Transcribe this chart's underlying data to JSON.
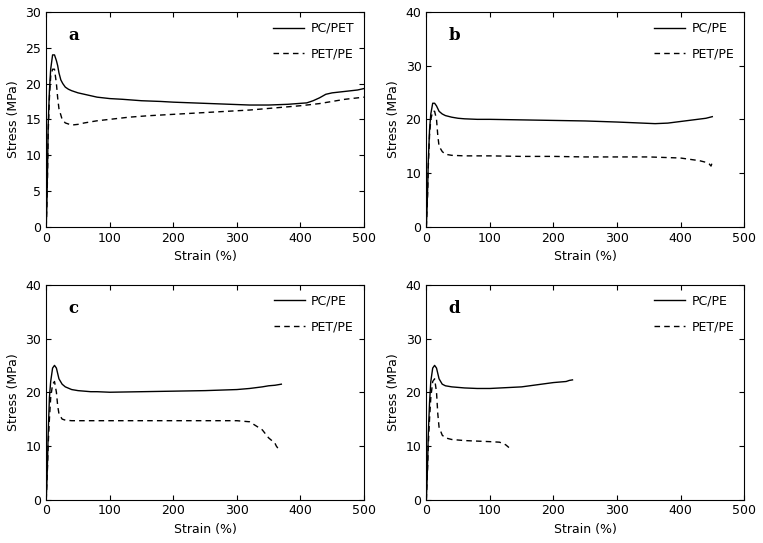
{
  "panels": [
    {
      "label": "a",
      "legend1": "PC/PET",
      "legend2": "PET/PE",
      "ylim": [
        0,
        30
      ],
      "yticks": [
        0,
        5,
        10,
        15,
        20,
        25,
        30
      ],
      "xlim": [
        0,
        500
      ],
      "xticks": [
        0,
        100,
        200,
        300,
        400,
        500
      ],
      "solid": {
        "x": [
          0,
          1,
          2,
          3,
          5,
          7,
          10,
          13,
          16,
          18,
          20,
          23,
          26,
          30,
          35,
          40,
          50,
          60,
          70,
          80,
          100,
          120,
          150,
          180,
          200,
          230,
          260,
          290,
          320,
          350,
          380,
          410,
          420,
          430,
          440,
          450,
          460,
          470,
          480,
          490,
          500
        ],
        "y": [
          0,
          3,
          8,
          14,
          19,
          22,
          24,
          24,
          23.2,
          22.5,
          21.5,
          20.5,
          20,
          19.5,
          19.2,
          19.0,
          18.7,
          18.5,
          18.3,
          18.1,
          17.9,
          17.8,
          17.6,
          17.5,
          17.4,
          17.3,
          17.2,
          17.1,
          17.0,
          17.0,
          17.1,
          17.3,
          17.6,
          18.0,
          18.5,
          18.7,
          18.8,
          18.9,
          19.0,
          19.1,
          19.3
        ]
      },
      "dashed": {
        "x": [
          0,
          1,
          2,
          3,
          5,
          7,
          10,
          13,
          16,
          18,
          20,
          25,
          30,
          40,
          50,
          60,
          80,
          100,
          130,
          160,
          200,
          240,
          280,
          320,
          360,
          400,
          430,
          450,
          470,
          490,
          500
        ],
        "y": [
          0,
          3,
          7,
          13,
          18,
          21,
          22,
          22,
          20,
          18,
          16.5,
          15.0,
          14.5,
          14.2,
          14.3,
          14.5,
          14.8,
          15.0,
          15.3,
          15.5,
          15.7,
          15.9,
          16.1,
          16.3,
          16.6,
          16.9,
          17.2,
          17.5,
          17.8,
          18.0,
          18.1
        ]
      }
    },
    {
      "label": "b",
      "legend1": "PC/PE",
      "legend2": "PET/PE",
      "ylim": [
        0,
        40
      ],
      "yticks": [
        0,
        10,
        20,
        30,
        40
      ],
      "xlim": [
        0,
        500
      ],
      "xticks": [
        0,
        100,
        200,
        300,
        400,
        500
      ],
      "solid": {
        "x": [
          0,
          1,
          2,
          3,
          5,
          7,
          10,
          13,
          16,
          18,
          20,
          25,
          30,
          40,
          50,
          60,
          80,
          100,
          150,
          200,
          250,
          300,
          320,
          340,
          360,
          380,
          400,
          420,
          440,
          450
        ],
        "y": [
          0,
          3,
          7,
          12,
          18,
          21,
          23,
          23,
          22.5,
          22,
          21.5,
          21.0,
          20.7,
          20.4,
          20.2,
          20.1,
          20.0,
          20.0,
          19.9,
          19.8,
          19.7,
          19.5,
          19.4,
          19.3,
          19.2,
          19.3,
          19.6,
          19.9,
          20.2,
          20.5
        ]
      },
      "dashed": {
        "x": [
          0,
          1,
          2,
          3,
          5,
          7,
          10,
          13,
          16,
          18,
          20,
          25,
          30,
          40,
          60,
          80,
          100,
          150,
          200,
          250,
          300,
          350,
          400,
          430,
          440,
          445,
          448,
          450
        ],
        "y": [
          0,
          3,
          6,
          11,
          17,
          20,
          21.5,
          21.5,
          20,
          17,
          15,
          14.0,
          13.5,
          13.3,
          13.2,
          13.2,
          13.2,
          13.1,
          13.1,
          13.0,
          13.0,
          13.0,
          12.8,
          12.3,
          12.0,
          11.7,
          11.3,
          12.0
        ]
      }
    },
    {
      "label": "c",
      "legend1": "PC/PE",
      "legend2": "PET/PE",
      "ylim": [
        0,
        40
      ],
      "yticks": [
        0,
        10,
        20,
        30,
        40
      ],
      "xlim": [
        0,
        500
      ],
      "xticks": [
        0,
        100,
        200,
        300,
        400,
        500
      ],
      "solid": {
        "x": [
          0,
          1,
          2,
          3,
          5,
          7,
          10,
          13,
          16,
          18,
          20,
          25,
          30,
          40,
          50,
          60,
          70,
          80,
          100,
          150,
          200,
          250,
          300,
          320,
          340,
          350,
          360,
          370
        ],
        "y": [
          0,
          3,
          7,
          12,
          19,
          22,
          24.5,
          25,
          24.5,
          23.5,
          22.5,
          21.5,
          21.0,
          20.5,
          20.3,
          20.2,
          20.1,
          20.1,
          20.0,
          20.1,
          20.2,
          20.3,
          20.5,
          20.7,
          21.0,
          21.2,
          21.3,
          21.5
        ]
      },
      "dashed": {
        "x": [
          0,
          1,
          2,
          3,
          5,
          7,
          10,
          13,
          16,
          18,
          20,
          25,
          30,
          40,
          60,
          80,
          100,
          150,
          200,
          250,
          300,
          320,
          340,
          350,
          355,
          360,
          362,
          365
        ],
        "y": [
          0,
          3,
          6,
          10,
          15,
          19,
          21.5,
          22,
          20,
          17.5,
          16,
          15.0,
          14.8,
          14.7,
          14.7,
          14.7,
          14.7,
          14.7,
          14.7,
          14.7,
          14.7,
          14.5,
          13.0,
          11.5,
          11.0,
          10.5,
          10.0,
          9.5
        ]
      }
    },
    {
      "label": "d",
      "legend1": "PC/PE",
      "legend2": "PET/PE",
      "ylim": [
        0,
        40
      ],
      "yticks": [
        0,
        10,
        20,
        30,
        40
      ],
      "xlim": [
        0,
        500
      ],
      "xticks": [
        0,
        100,
        200,
        300,
        400,
        500
      ],
      "solid": {
        "x": [
          0,
          1,
          2,
          3,
          5,
          7,
          10,
          13,
          16,
          18,
          20,
          25,
          30,
          40,
          50,
          60,
          80,
          100,
          150,
          200,
          220,
          225,
          230
        ],
        "y": [
          0,
          3,
          7,
          12,
          18,
          22,
          24.5,
          25,
          24.5,
          23.5,
          22.5,
          21.5,
          21.2,
          21.0,
          20.9,
          20.8,
          20.7,
          20.7,
          21.0,
          21.8,
          22.0,
          22.2,
          22.3
        ]
      },
      "dashed": {
        "x": [
          0,
          1,
          2,
          3,
          5,
          7,
          10,
          13,
          16,
          18,
          20,
          25,
          30,
          40,
          60,
          80,
          100,
          115,
          120,
          125,
          128,
          130
        ],
        "y": [
          0,
          3,
          6,
          10,
          15,
          19,
          22,
          22.5,
          20,
          16,
          13.5,
          12.0,
          11.5,
          11.2,
          11.0,
          10.9,
          10.8,
          10.7,
          10.5,
          10.2,
          9.9,
          9.7
        ]
      }
    }
  ],
  "ylabel": "Stress (MPa)",
  "xlabel": "Strain (%)",
  "bg_color": "#ffffff",
  "line_color": "#000000",
  "fontsize": 9,
  "label_fontsize": 12,
  "figsize": [
    7.63,
    5.43
  ],
  "dpi": 100
}
